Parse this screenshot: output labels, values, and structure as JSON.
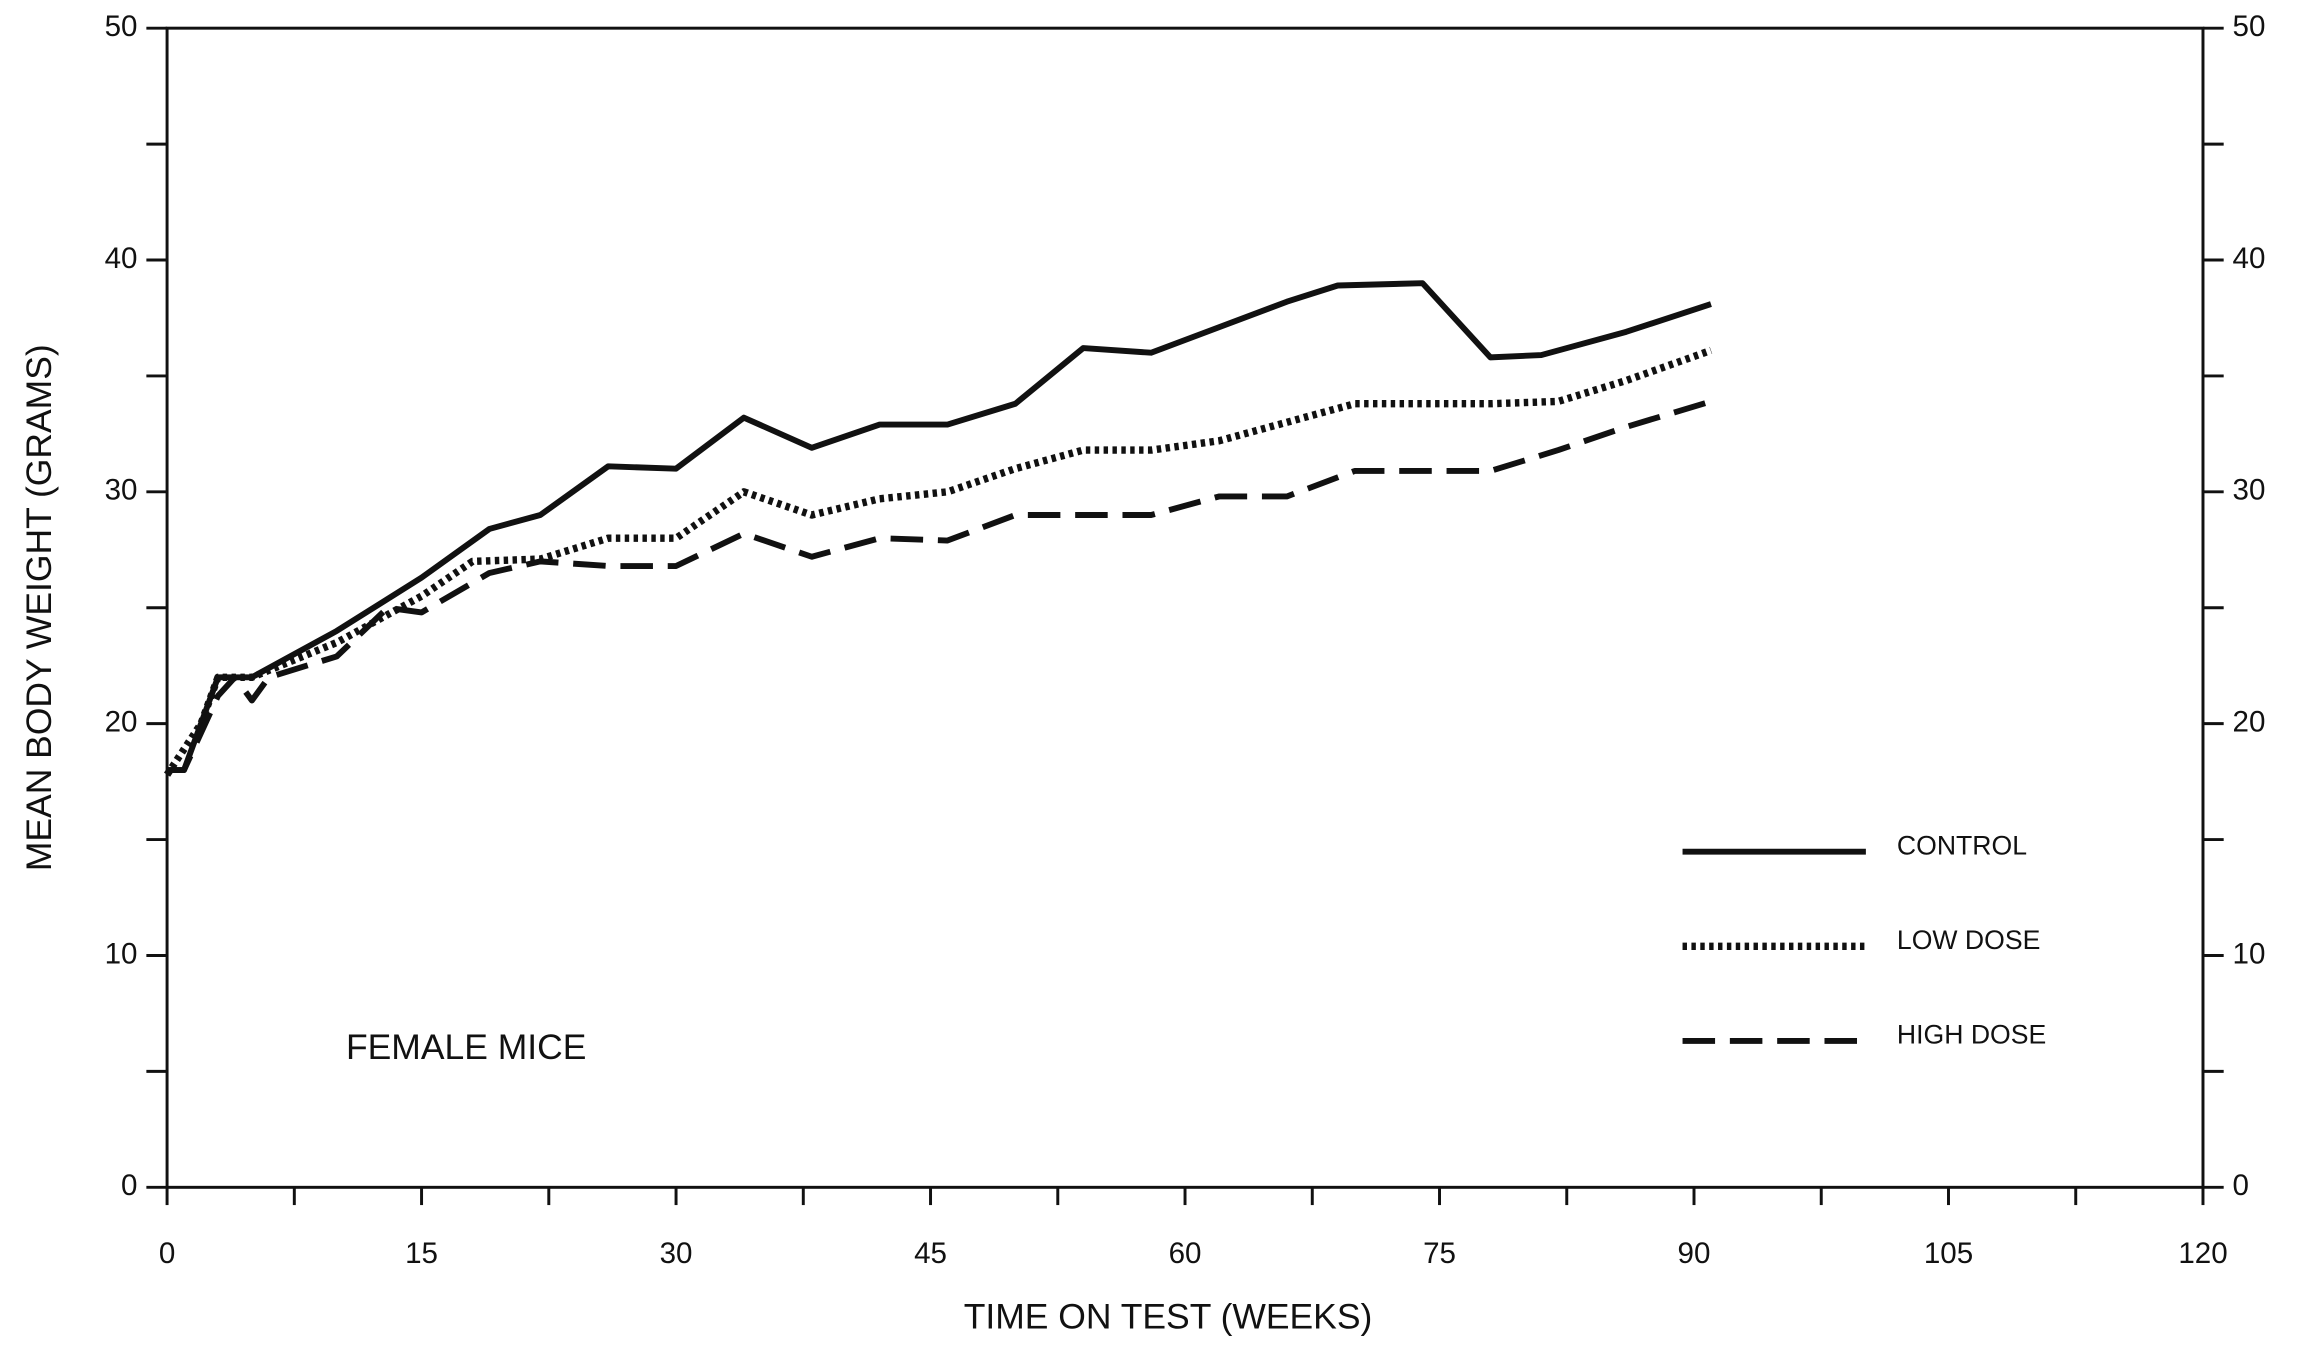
{
  "chart_data": {
    "type": "line",
    "xlabel": "TIME ON TEST (WEEKS)",
    "ylabel": "MEAN BODY WEIGHT (GRAMS)",
    "annotation": "FEMALE MICE",
    "xlim": [
      0,
      120
    ],
    "xticks": [
      0,
      15,
      30,
      45,
      60,
      75,
      90,
      105,
      120
    ],
    "xminor": [
      7.5,
      22.5,
      37.5,
      52.5,
      67.5,
      82.5,
      97.5,
      112.5
    ],
    "ylim": [
      0,
      50
    ],
    "yticks": [
      0,
      10,
      20,
      30,
      40,
      50
    ],
    "yminor": [
      5,
      15,
      25,
      35,
      45
    ],
    "y2lim": [
      0,
      50
    ],
    "y2ticks": [
      0,
      10,
      20,
      30,
      40,
      50
    ],
    "legend": "lower right",
    "series": [
      {
        "name": "CONTROL",
        "color": "#111111",
        "style": "solid",
        "x": [
          0,
          1,
          3,
          5,
          10,
          15,
          19,
          22,
          26,
          30,
          34,
          38,
          42,
          46,
          50,
          54,
          58,
          62,
          66,
          69,
          74,
          78,
          81,
          86,
          91
        ],
        "values": [
          18,
          18,
          22,
          22,
          24,
          26.3,
          28.4,
          29,
          31.1,
          31,
          33.2,
          31.9,
          32.9,
          32.9,
          33.8,
          36.2,
          36,
          37.1,
          38.2,
          38.9,
          39,
          35.8,
          35.9,
          36.9,
          38.1
        ]
      },
      {
        "name": "LOW DOSE",
        "color": "#111111",
        "style": "dotted",
        "x": [
          0,
          2,
          3,
          5,
          10,
          15,
          18,
          22,
          26,
          30,
          34,
          38,
          42,
          46,
          50,
          54,
          58,
          62,
          66,
          70,
          74,
          78,
          82,
          86,
          91
        ],
        "values": [
          17.8,
          20,
          22,
          22,
          23.5,
          25.5,
          27,
          27.1,
          28,
          28,
          30,
          29,
          29.7,
          30,
          31,
          31.8,
          31.8,
          32.2,
          33,
          33.8,
          33.8,
          33.8,
          33.9,
          34.8,
          36.1
        ]
      },
      {
        "name": "HIGH DOSE",
        "color": "#111111",
        "style": "dashed",
        "x": [
          0,
          1,
          3,
          4,
          5,
          6,
          10,
          13,
          15,
          19,
          22,
          26,
          30,
          34,
          38,
          42,
          46,
          50,
          54,
          58,
          62,
          66,
          70,
          74,
          78,
          82,
          86,
          91
        ],
        "values": [
          18,
          18,
          21.2,
          22,
          21,
          22,
          22.9,
          25,
          24.8,
          26.5,
          27,
          26.8,
          26.8,
          28.2,
          27.2,
          28,
          27.9,
          29,
          29,
          29,
          29.8,
          29.8,
          30.9,
          30.9,
          30.9,
          31.8,
          32.8,
          33.9
        ]
      }
    ]
  }
}
